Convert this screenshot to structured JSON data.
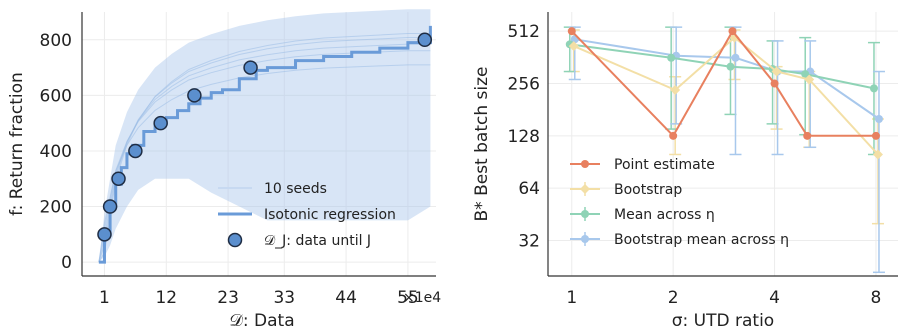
{
  "chart_data": [
    {
      "type": "line",
      "xlabel": "𝒟: Data",
      "ylabel": "f: Return fraction",
      "x_multiplier": "×1e4",
      "xlim": [
        -3,
        60
      ],
      "ylim": [
        -50,
        900
      ],
      "xticks": [
        1,
        12,
        23,
        33,
        44,
        55
      ],
      "yticks": [
        0,
        200,
        400,
        600,
        800
      ],
      "grid": true,
      "legend_position": "lower-right",
      "series": [
        {
          "name": "10 seeds",
          "style": "faint-band",
          "x": [
            0,
            1,
            2,
            3,
            5,
            7,
            10,
            13,
            16,
            20,
            25,
            30,
            35,
            40,
            45,
            50,
            55,
            59
          ],
          "upper": [
            0,
            180,
            300,
            420,
            540,
            620,
            700,
            750,
            790,
            820,
            850,
            870,
            885,
            895,
            900,
            905,
            910,
            910
          ],
          "lower": [
            0,
            20,
            60,
            120,
            200,
            260,
            300,
            300,
            300,
            250,
            200,
            150,
            150,
            150,
            150,
            150,
            150,
            200
          ]
        },
        {
          "name": "Isotonic regression",
          "x": [
            0,
            1,
            2,
            3,
            4,
            5,
            6,
            8,
            10,
            12,
            14,
            16,
            18,
            20,
            22,
            25,
            28,
            30,
            35,
            40,
            45,
            50,
            55,
            57,
            59
          ],
          "y": [
            0,
            100,
            200,
            280,
            340,
            390,
            420,
            470,
            500,
            520,
            545,
            570,
            590,
            610,
            620,
            660,
            690,
            700,
            725,
            740,
            755,
            770,
            790,
            790,
            850
          ]
        },
        {
          "name": "𝒟_J: data until J",
          "style": "markers",
          "x": [
            1,
            2,
            3.5,
            6.5,
            11,
            17,
            27,
            58
          ],
          "y": [
            100,
            200,
            300,
            400,
            500,
            600,
            700,
            800
          ]
        }
      ]
    },
    {
      "type": "line",
      "xlabel": "σ: UTD ratio",
      "ylabel": "B* Best batch size",
      "yscale": "log2",
      "ylim": [
        20,
        660
      ],
      "xlim": [
        0.85,
        9.3
      ],
      "xscale": "log2",
      "xticks": [
        1,
        2,
        4,
        8
      ],
      "yticks": [
        32,
        64,
        128,
        256,
        512
      ],
      "grid": true,
      "legend_position": "lower-left",
      "x": [
        1,
        2,
        3,
        4,
        5,
        8
      ],
      "series": [
        {
          "name": "Point estimate",
          "color": "#e8805f",
          "values": [
            512,
            128,
            512,
            256,
            128,
            128
          ]
        },
        {
          "name": "Bootstrap",
          "color": "#f3dfa6",
          "values": [
            420,
            235,
            470,
            300,
            270,
            100
          ],
          "err_low": [
            300,
            100,
            270,
            140,
            110,
            40
          ],
          "err_high": [
            520,
            280,
            520,
            320,
            300,
            160
          ]
        },
        {
          "name": "Mean across η",
          "color": "#8fd3b6",
          "values": [
            430,
            360,
            320,
            310,
            290,
            240
          ],
          "err_low": [
            300,
            140,
            170,
            150,
            130,
            100
          ],
          "err_high": [
            540,
            540,
            540,
            450,
            470,
            440
          ]
        },
        {
          "name": "Bootstrap mean across η",
          "color": "#a8c8ec",
          "values": [
            460,
            370,
            360,
            300,
            300,
            160
          ],
          "err_low": [
            270,
            150,
            100,
            100,
            110,
            21
          ],
          "err_high": [
            540,
            540,
            540,
            450,
            450,
            300
          ]
        }
      ]
    }
  ]
}
